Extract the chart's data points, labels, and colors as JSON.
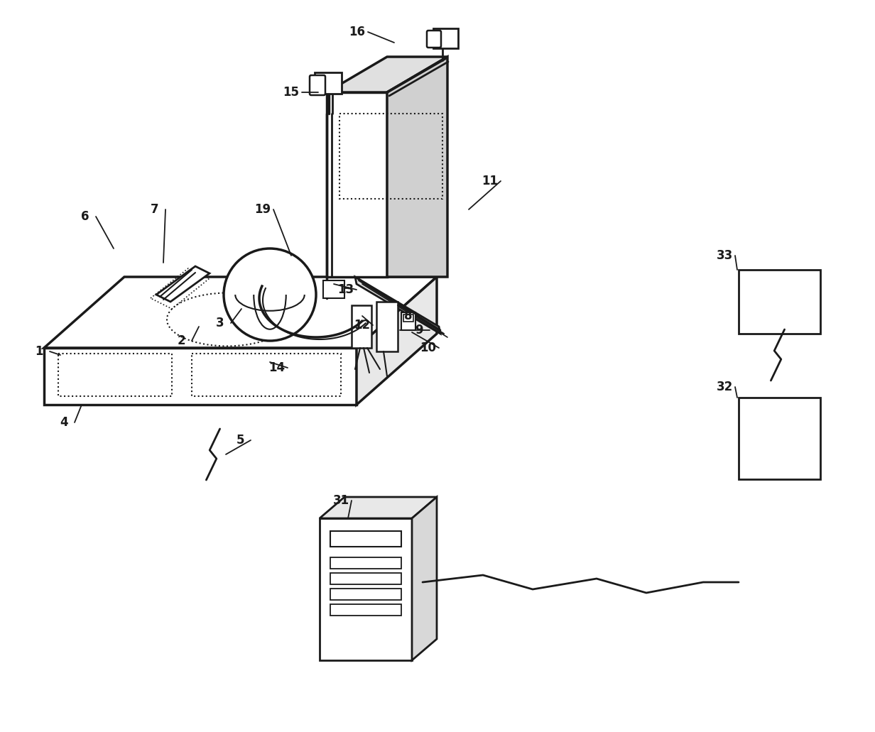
{
  "bg_color": "#ffffff",
  "line_color": "#1a1a1a",
  "label_color": "#1a1a1a",
  "label_fontsize": 12,
  "fig_width": 12.32,
  "fig_height": 10.31
}
